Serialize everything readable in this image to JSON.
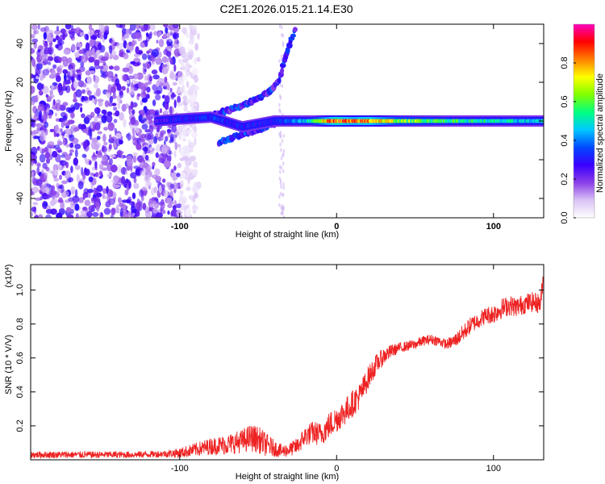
{
  "title": "C2E1.2026.015.21.14.E30",
  "chart_data": [
    {
      "type": "heatmap",
      "name": "spectrogram",
      "xlabel": "Height of straight line (km)",
      "ylabel": "Frequency (Hz)",
      "xlim": [
        -195,
        132
      ],
      "ylim": [
        -50,
        50
      ],
      "xticks": [
        -100,
        0,
        100
      ],
      "xtick_labels": [
        "-100",
        "0",
        "100"
      ],
      "yticks": [
        -40,
        -20,
        0,
        20,
        40
      ],
      "ytick_labels": [
        "-40",
        "-20",
        "0",
        "20",
        "40"
      ],
      "colorbar": {
        "label": "Normalized spectral amplitude",
        "range": [
          0,
          1
        ],
        "ticks": [
          0.0,
          0.2,
          0.4,
          0.6,
          0.8
        ],
        "tick_labels": [
          "0.0",
          "0.2",
          "0.4",
          "0.6",
          "0.8"
        ],
        "colors": [
          "#ffffff",
          "#d9c2f5",
          "#8b3fe8",
          "#3a00ff",
          "#0048ff",
          "#00c8ff",
          "#00ff80",
          "#80ff00",
          "#ffff00",
          "#ff8000",
          "#ff0000",
          "#ff00c0"
        ]
      },
      "features": {
        "noise_region_x": [
          -195,
          -100
        ],
        "signal_band": [
          {
            "x": -115,
            "y": 0,
            "amp": 0.25
          },
          {
            "x": -100,
            "y": 1,
            "amp": 0.3
          },
          {
            "x": -80,
            "y": 2,
            "amp": 0.35
          },
          {
            "x": -60,
            "y": -3,
            "amp": 0.3
          },
          {
            "x": -40,
            "y": 0,
            "amp": 0.3
          },
          {
            "x": -20,
            "y": 0,
            "amp": 0.45
          },
          {
            "x": -10,
            "y": 0,
            "amp": 0.7
          },
          {
            "x": 0,
            "y": 0,
            "amp": 0.9
          },
          {
            "x": 10,
            "y": 0,
            "amp": 0.8
          },
          {
            "x": 20,
            "y": 0,
            "amp": 0.85
          },
          {
            "x": 40,
            "y": 0,
            "amp": 0.65
          },
          {
            "x": 80,
            "y": 0,
            "amp": 0.55
          },
          {
            "x": 100,
            "y": 0,
            "amp": 0.5
          },
          {
            "x": 132,
            "y": 0,
            "amp": 0.45
          }
        ],
        "upper_branch": [
          {
            "x": -78,
            "y": 3
          },
          {
            "x": -60,
            "y": 8
          },
          {
            "x": -45,
            "y": 14
          },
          {
            "x": -37,
            "y": 20
          },
          {
            "x": -32,
            "y": 35
          },
          {
            "x": -26,
            "y": 48
          }
        ],
        "lower_branch": [
          {
            "x": -75,
            "y": -11
          },
          {
            "x": -60,
            "y": -7
          },
          {
            "x": -45,
            "y": -3
          },
          {
            "x": -35,
            "y": 0
          }
        ]
      }
    },
    {
      "type": "line",
      "name": "snr",
      "xlabel": "Height of straight line (km)",
      "ylabel": "SNR (10 * V/V)",
      "y_multiplier": "(x10",
      "y_multiplier_exp": "4",
      "y_multiplier_close": ")",
      "xlim": [
        -195,
        132
      ],
      "ylim": [
        0,
        1.15
      ],
      "xticks": [
        -100,
        0,
        100
      ],
      "xtick_labels": [
        "-100",
        "0",
        "100"
      ],
      "yticks": [
        0.2,
        0.4,
        0.6,
        0.8,
        1.0
      ],
      "ytick_labels": [
        "0.2",
        "0.4",
        "0.6",
        "0.8",
        "1.0"
      ],
      "series": [
        {
          "name": "SNR",
          "color": "#ee2222",
          "x": [
            -195,
            -160,
            -130,
            -110,
            -100,
            -90,
            -80,
            -70,
            -60,
            -55,
            -50,
            -45,
            -40,
            -35,
            -30,
            -25,
            -20,
            -15,
            -10,
            -5,
            0,
            5,
            10,
            15,
            20,
            25,
            30,
            35,
            40,
            45,
            50,
            55,
            60,
            65,
            70,
            75,
            80,
            85,
            90,
            95,
            100,
            105,
            110,
            115,
            120,
            125,
            130,
            132
          ],
          "values": [
            0.03,
            0.03,
            0.03,
            0.035,
            0.04,
            0.06,
            0.08,
            0.09,
            0.11,
            0.13,
            0.12,
            0.09,
            0.07,
            0.05,
            0.06,
            0.08,
            0.14,
            0.16,
            0.15,
            0.2,
            0.24,
            0.28,
            0.33,
            0.38,
            0.48,
            0.56,
            0.61,
            0.64,
            0.66,
            0.67,
            0.68,
            0.7,
            0.71,
            0.7,
            0.68,
            0.7,
            0.74,
            0.79,
            0.82,
            0.85,
            0.86,
            0.89,
            0.91,
            0.9,
            0.92,
            0.93,
            0.92,
            1.1
          ],
          "noise": [
            0.02,
            0.02,
            0.02,
            0.02,
            0.03,
            0.04,
            0.05,
            0.06,
            0.07,
            0.08,
            0.08,
            0.07,
            0.05,
            0.04,
            0.04,
            0.05,
            0.06,
            0.07,
            0.07,
            0.08,
            0.08,
            0.08,
            0.08,
            0.08,
            0.07,
            0.06,
            0.05,
            0.04,
            0.03,
            0.03,
            0.03,
            0.03,
            0.03,
            0.03,
            0.03,
            0.04,
            0.05,
            0.05,
            0.05,
            0.05,
            0.06,
            0.06,
            0.06,
            0.06,
            0.06,
            0.06,
            0.06,
            0.06
          ]
        }
      ]
    }
  ]
}
